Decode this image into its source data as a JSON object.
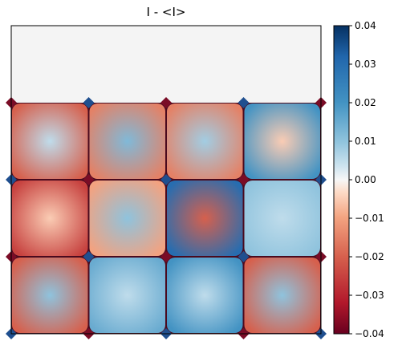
{
  "chart_data": {
    "type": "heatmap",
    "title": "I - <I>",
    "colormap": "RdBu",
    "colorbar": {
      "min": -0.04,
      "max": 0.04,
      "ticks": [
        0.04,
        0.03,
        0.02,
        0.01,
        0.0,
        -0.01,
        -0.02,
        -0.03,
        -0.04
      ],
      "tick_labels": [
        "0.04",
        "0.03",
        "0.02",
        "0.01",
        "0.00",
        "−0.01",
        "−0.02",
        "−0.03",
        "−0.04"
      ]
    },
    "grid": {
      "rows": 4,
      "cols": 4,
      "empty_top_row": true
    },
    "cells": [
      {
        "row": 1,
        "col": 0,
        "center_value": 0.005,
        "edge_value": -0.02
      },
      {
        "row": 1,
        "col": 1,
        "center_value": 0.012,
        "edge_value": -0.015
      },
      {
        "row": 1,
        "col": 2,
        "center_value": 0.008,
        "edge_value": -0.015
      },
      {
        "row": 1,
        "col": 3,
        "center_value": -0.005,
        "edge_value": 0.02
      },
      {
        "row": 2,
        "col": 0,
        "center_value": -0.005,
        "edge_value": -0.025
      },
      {
        "row": 2,
        "col": 1,
        "center_value": 0.01,
        "edge_value": -0.01
      },
      {
        "row": 2,
        "col": 2,
        "center_value": -0.02,
        "edge_value": 0.03
      },
      {
        "row": 2,
        "col": 3,
        "center_value": 0.005,
        "edge_value": 0.01
      },
      {
        "row": 3,
        "col": 0,
        "center_value": 0.01,
        "edge_value": -0.02
      },
      {
        "row": 3,
        "col": 1,
        "center_value": 0.005,
        "edge_value": 0.015
      },
      {
        "row": 3,
        "col": 2,
        "center_value": 0.005,
        "edge_value": 0.02
      },
      {
        "row": 3,
        "col": 3,
        "center_value": 0.01,
        "edge_value": -0.02
      }
    ]
  }
}
